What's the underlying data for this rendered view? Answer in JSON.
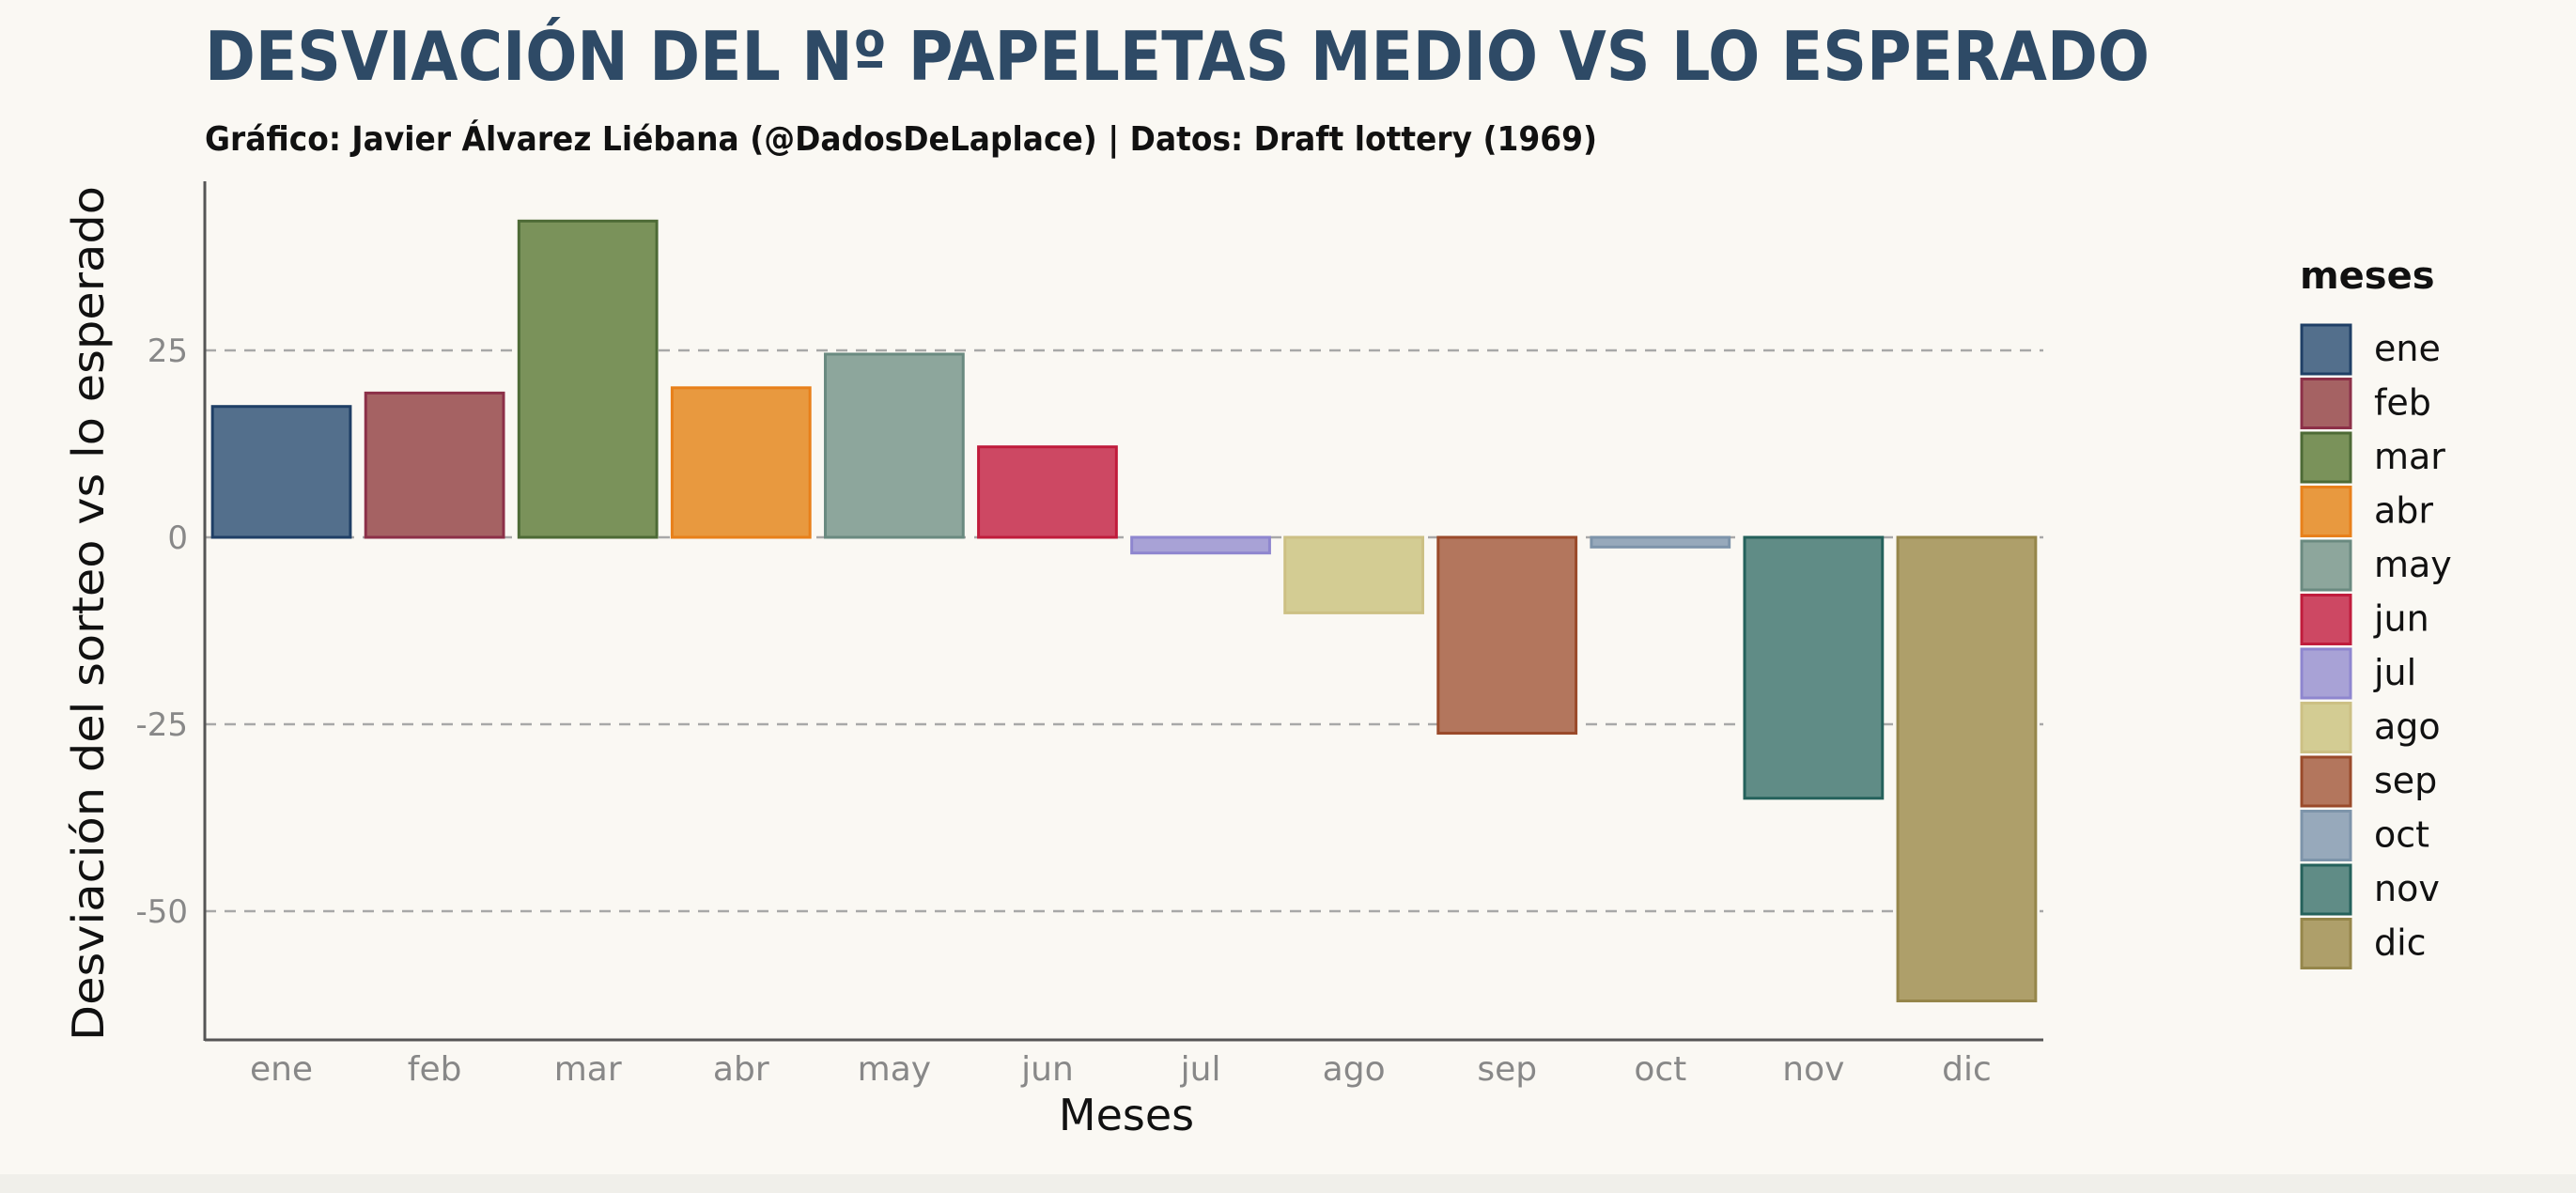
{
  "chart_data": {
    "type": "bar",
    "title": "DESVIACIÓN DEL Nº PAPELETAS MEDIO VS LO ESPERADO",
    "subtitle": "Gráfico: Javier Álvarez Liébana (@DadosDeLaplace) | Datos: Draft lottery (1969)",
    "xlabel": "Meses",
    "ylabel": "Desviación del sorteo vs lo esperado",
    "categories": [
      "ene",
      "feb",
      "mar",
      "abr",
      "may",
      "jun",
      "jul",
      "ago",
      "sep",
      "oct",
      "nov",
      "dic"
    ],
    "values": [
      17.5,
      19.3,
      42.3,
      20.0,
      24.5,
      12.1,
      -2.1,
      -10.1,
      -26.2,
      -1.3,
      -34.9,
      -62.0
    ],
    "colors": [
      "#536f8c",
      "#a56263",
      "#7a925a",
      "#e8993f",
      "#8da69c",
      "#cd4863",
      "#a8a2d6",
      "#d3cc93",
      "#b3765d",
      "#97a9bb",
      "#608c86",
      "#ae9f6a"
    ],
    "edge_colors": [
      "#1f3f66",
      "#8c3048",
      "#4d6a36",
      "#e8801a",
      "#6a8a80",
      "#c01c3c",
      "#8e86cf",
      "#ccc084",
      "#9a4a2a",
      "#7d94aa",
      "#24615b",
      "#95864a"
    ],
    "ylim": [
      -67,
      47
    ],
    "yticks": [
      -50,
      -25,
      0,
      25
    ],
    "grid": "horizontal-dashed",
    "legend": {
      "title": "meses",
      "placement": "right",
      "entries": [
        "ene",
        "feb",
        "mar",
        "abr",
        "may",
        "jun",
        "jul",
        "ago",
        "sep",
        "oct",
        "nov",
        "dic"
      ]
    }
  }
}
